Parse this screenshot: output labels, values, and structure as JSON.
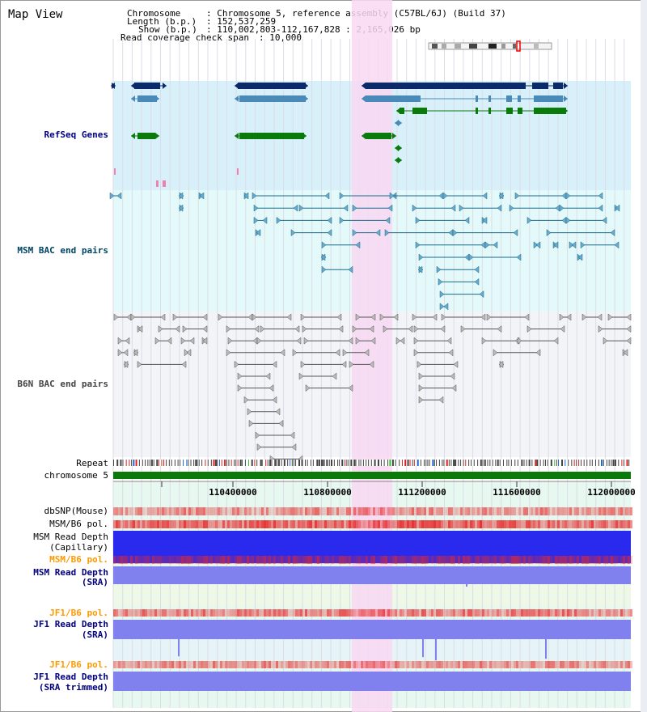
{
  "header": {
    "title": "Map View",
    "chromosome_key": "Chromosome",
    "chromosome_value": ": Chromosome 5, reference assembly (C57BL/6J) (Build 37)",
    "length_key": "Length (b.p.)",
    "length_value": ": 152,537,259",
    "show_key": "Show (b.p.)",
    "show_value": ": 110,002,803-112,167,828 : 2,165,026 bp",
    "coverage_key": "Read coverage check span",
    "coverage_value": ": 10,000"
  },
  "tracks": {
    "refseq": "RefSeq Genes",
    "msm_bac": "MSM BAC end pairs",
    "b6n_bac": "B6N BAC end pairs",
    "repeat": "Repeat",
    "chromosome": "chromosome 5",
    "dbsnp": "dbSNP(Mouse)",
    "msm_b6_pol_1": "MSM/B6 pol.",
    "msm_depth_cap_1": "MSM Read Depth",
    "msm_depth_cap_2": "(Capillary)",
    "msm_b6_pol_2": "MSM/B6 pol.",
    "msm_depth_sra_1": "MSM Read Depth",
    "msm_depth_sra_2": "(SRA)",
    "jf1_b6_pol_1": "JF1/B6 pol.",
    "jf1_depth_sra_1": "JF1 Read Depth",
    "jf1_depth_sra_2": "(SRA)",
    "jf1_b6_pol_2": "JF1/B6 pol.",
    "jf1_depth_trim_1": "JF1 Read Depth",
    "jf1_depth_trim_2": "(SRA trimmed)"
  },
  "ruler": {
    "ticks": [
      "110400000",
      "110800000",
      "111200000",
      "111600000",
      "112000000"
    ]
  },
  "colors": {
    "refseq_bg": "#d8f0fa",
    "msm_bg": "#e4fafa",
    "b6n_bg": "#f2f4f8",
    "highlight": "#f8d8f2",
    "gene_navy": "#0a2a6a",
    "gene_steel": "#4a8ab8",
    "gene_green": "#0a7a0a",
    "msm_line": "#1a6a8a",
    "b6n_line": "#555555",
    "chrom_bar": "#0a7a0a",
    "depth_blue": "#2a2aee",
    "depth_violet": "#8080ee",
    "label_navy": "#000080",
    "label_teal": "#004466",
    "label_orange": "#ff9900"
  }
}
